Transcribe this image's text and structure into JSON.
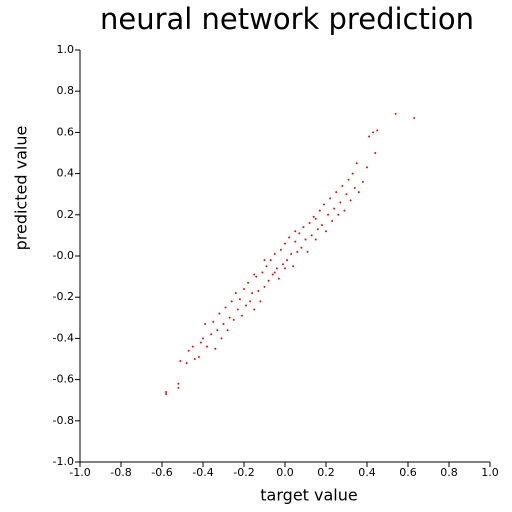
{
  "chart_data": {
    "type": "scatter",
    "title": "neural network prediction",
    "x_label": "target value",
    "y_label": "predicted value",
    "xlim": [
      -1.0,
      1.0
    ],
    "ylim": [
      -1.0,
      1.0
    ],
    "xticks": [
      {
        "value": -1.0,
        "label": "-1.0"
      },
      {
        "value": -0.8,
        "label": "-0.8"
      },
      {
        "value": -0.6,
        "label": "-0.6"
      },
      {
        "value": -0.4,
        "label": "-0.4"
      },
      {
        "value": -0.2,
        "label": "-0.2"
      },
      {
        "value": 0,
        "label": "0.0"
      },
      {
        "value": 0.2,
        "label": "0.2"
      },
      {
        "value": 0.4,
        "label": "0.4"
      },
      {
        "value": 0.6,
        "label": "0.6"
      },
      {
        "value": 0.8,
        "label": "0.8"
      },
      {
        "value": 1.0,
        "label": "1.0"
      }
    ],
    "yticks": [
      {
        "value": -1.0,
        "label": "-1.0"
      },
      {
        "value": -0.8,
        "label": "-0.8"
      },
      {
        "value": -0.6,
        "label": "-0.6"
      },
      {
        "value": -0.4,
        "label": "-0.4"
      },
      {
        "value": -0.2,
        "label": "-0.2"
      },
      {
        "value": 0,
        "label": "-0.0"
      },
      {
        "value": 0.2,
        "label": "0.2"
      },
      {
        "value": 0.4,
        "label": "0.4"
      },
      {
        "value": 0.6,
        "label": "0.6"
      },
      {
        "value": 0.8,
        "label": "0.8"
      },
      {
        "value": 1.0,
        "label": "1.0"
      }
    ],
    "color": "#ff0000",
    "x": [
      -0.58,
      -0.58,
      -0.52,
      -0.52,
      -0.51,
      -0.48,
      -0.47,
      -0.45,
      -0.44,
      -0.42,
      -0.41,
      -0.4,
      -0.39,
      -0.38,
      -0.36,
      -0.35,
      -0.34,
      -0.33,
      -0.32,
      -0.31,
      -0.3,
      -0.29,
      -0.28,
      -0.27,
      -0.26,
      -0.25,
      -0.24,
      -0.23,
      -0.22,
      -0.21,
      -0.2,
      -0.19,
      -0.18,
      -0.17,
      -0.16,
      -0.15,
      -0.14,
      -0.13,
      -0.12,
      -0.11,
      -0.1,
      -0.09,
      -0.08,
      -0.07,
      -0.06,
      -0.05,
      -0.04,
      -0.03,
      -0.02,
      -0.01,
      0.0,
      0.01,
      0.02,
      0.03,
      0.04,
      0.05,
      0.06,
      0.07,
      0.08,
      0.09,
      0.1,
      0.11,
      0.12,
      0.13,
      0.14,
      0.15,
      0.16,
      0.17,
      0.18,
      0.19,
      0.2,
      0.21,
      0.22,
      0.23,
      0.24,
      0.25,
      0.26,
      0.27,
      0.28,
      0.29,
      0.3,
      0.31,
      0.32,
      0.33,
      0.34,
      0.35,
      0.36,
      0.38,
      0.4,
      0.41,
      0.43,
      0.44,
      0.45,
      0.54,
      0.63,
      -0.05,
      0.0,
      -0.1,
      0.05,
      -0.15,
      0.15
    ],
    "y": [
      -0.67,
      -0.66,
      -0.64,
      -0.62,
      -0.51,
      -0.52,
      -0.46,
      -0.44,
      -0.5,
      -0.49,
      -0.42,
      -0.4,
      -0.33,
      -0.44,
      -0.38,
      -0.32,
      -0.45,
      -0.36,
      -0.28,
      -0.4,
      -0.33,
      -0.25,
      -0.36,
      -0.3,
      -0.22,
      -0.31,
      -0.18,
      -0.26,
      -0.21,
      -0.29,
      -0.16,
      -0.24,
      -0.13,
      -0.22,
      -0.18,
      -0.26,
      -0.1,
      -0.17,
      -0.22,
      -0.08,
      -0.15,
      -0.05,
      -0.12,
      -0.02,
      -0.09,
      0.01,
      -0.06,
      -0.11,
      0.03,
      -0.04,
      0.06,
      -0.02,
      0.09,
      0.01,
      -0.05,
      0.07,
      0.02,
      0.11,
      0.04,
      0.14,
      0.08,
      0.02,
      0.16,
      0.1,
      0.19,
      0.08,
      0.13,
      0.22,
      0.15,
      0.25,
      0.12,
      0.2,
      0.28,
      0.17,
      0.23,
      0.31,
      0.2,
      0.26,
      0.34,
      0.22,
      0.3,
      0.37,
      0.27,
      0.4,
      0.33,
      0.45,
      0.31,
      0.36,
      0.43,
      0.58,
      0.6,
      0.5,
      0.61,
      0.69,
      0.67,
      -0.08,
      -0.06,
      -0.02,
      0.12,
      -0.09,
      0.18
    ]
  }
}
